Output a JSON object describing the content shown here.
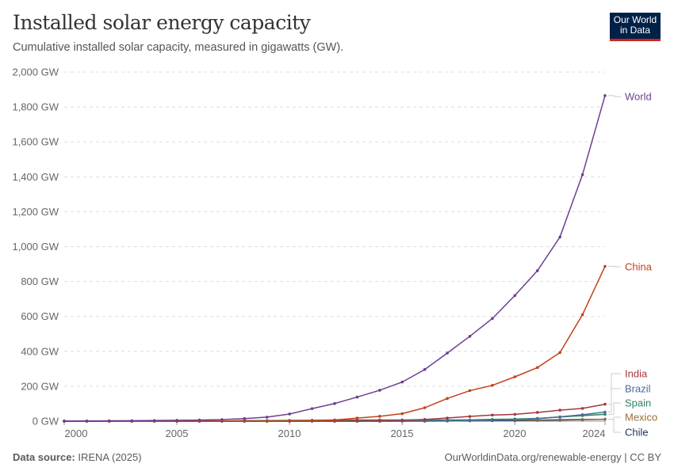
{
  "header": {
    "title": "Installed solar energy capacity",
    "subtitle": "Cumulative installed solar capacity, measured in gigawatts (GW).",
    "logo": "Our World in Data"
  },
  "footer": {
    "source_label": "Data source:",
    "source": "IRENA (2025)",
    "url": "OurWorldinData.org/renewable-energy | CC BY"
  },
  "chart_data": {
    "type": "line",
    "title": "Installed solar energy capacity",
    "ylabel": "",
    "xlabel": "",
    "xlim": [
      2000,
      2024
    ],
    "ylim": [
      0,
      2000
    ],
    "grid": "horizontal dashed",
    "legend": "inline-right",
    "x_ticks": [
      "2000",
      "2005",
      "2010",
      "2015",
      "2020",
      "2024"
    ],
    "y_ticks": [
      "0 GW",
      "200 GW",
      "400 GW",
      "600 GW",
      "800 GW",
      "1,000 GW",
      "1,200 GW",
      "1,400 GW",
      "1,600 GW",
      "1,800 GW",
      "2,000 GW"
    ],
    "x": [
      2000,
      2001,
      2002,
      2003,
      2004,
      2005,
      2006,
      2007,
      2008,
      2009,
      2010,
      2011,
      2012,
      2013,
      2014,
      2015,
      2016,
      2017,
      2018,
      2019,
      2020,
      2021,
      2022,
      2023,
      2024
    ],
    "series": [
      {
        "name": "World",
        "color": "#6d3e91",
        "values": [
          1.2,
          1.5,
          2,
          2.6,
          3.7,
          5,
          6.5,
          9,
          15,
          23,
          41,
          72,
          101,
          138,
          177,
          224,
          296,
          390,
          486,
          588,
          720,
          862,
          1055,
          1412,
          1865
        ]
      },
      {
        "name": "China",
        "color": "#c2411a",
        "values": [
          0,
          0,
          0,
          0,
          0.1,
          0.1,
          0.1,
          0.1,
          0.1,
          0.4,
          1,
          3,
          6.7,
          17.7,
          28,
          43,
          77,
          130,
          175,
          205,
          254,
          307,
          393,
          610,
          887
        ]
      },
      {
        "name": "India",
        "color": "#a2373f",
        "values": [
          0,
          0,
          0,
          0,
          0,
          0,
          0,
          0,
          0,
          0,
          0.1,
          0.6,
          1,
          1.5,
          3,
          5.6,
          9.7,
          18,
          27,
          35,
          39,
          50,
          63,
          73,
          97
        ]
      },
      {
        "name": "Brazil",
        "color": "#4c6a9c",
        "values": [
          0,
          0,
          0,
          0,
          0,
          0,
          0,
          0,
          0,
          0,
          0,
          0,
          0,
          0,
          0,
          0,
          0.1,
          1,
          2.4,
          4.6,
          7.9,
          14,
          25,
          37,
          52
        ]
      },
      {
        "name": "Spain",
        "color": "#2c8465",
        "values": [
          0,
          0,
          0,
          0,
          0,
          0.1,
          0.2,
          0.7,
          3.4,
          3.6,
          4.7,
          5.2,
          6.6,
          6.9,
          6.9,
          7,
          7,
          7,
          7.1,
          10,
          12,
          16,
          24,
          32,
          39
        ]
      },
      {
        "name": "Mexico",
        "color": "#996d39",
        "values": [
          0,
          0,
          0,
          0,
          0,
          0,
          0,
          0,
          0,
          0,
          0,
          0,
          0.1,
          0.1,
          0.2,
          0.2,
          0.4,
          0.7,
          3,
          5,
          6,
          7,
          9,
          10,
          11
        ]
      },
      {
        "name": "Chile",
        "color": "#18345c",
        "values": [
          0,
          0,
          0,
          0,
          0,
          0,
          0,
          0,
          0,
          0,
          0,
          0,
          0,
          0,
          0.4,
          0.6,
          1.1,
          1.8,
          2.4,
          2.9,
          3.5,
          4.4,
          6,
          8.4,
          11
        ]
      }
    ]
  }
}
